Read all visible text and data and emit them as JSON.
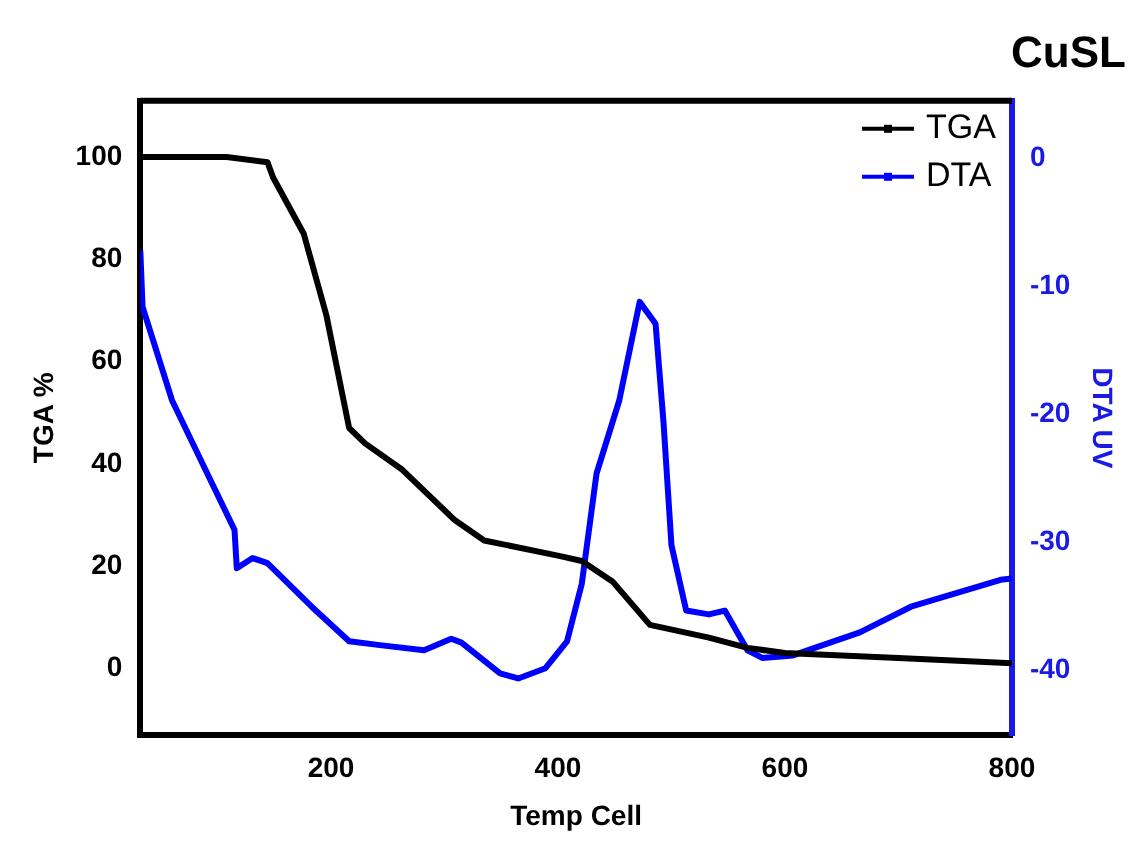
{
  "chart_data": {
    "type": "line",
    "title": "CuSL",
    "xlabel": "Temp Cell",
    "ylabel": "TGA %",
    "y2label": "DTA UV",
    "xlim": [
      32,
      800
    ],
    "xticks": [
      200,
      400,
      600,
      800
    ],
    "ylim": [
      -13,
      111
    ],
    "yticks": [
      0,
      20,
      40,
      60,
      80,
      100
    ],
    "y2lim": [
      -45,
      4.5
    ],
    "y2ticks": [
      -40,
      -30,
      -20,
      -10,
      0
    ],
    "legend": "top right",
    "marker": "none",
    "grid": false,
    "series": [
      {
        "name": "TGA",
        "color": "#000000",
        "x": [
          32,
          108,
          144,
          149,
          176,
          196,
          216,
          230,
          262,
          309,
          335,
          401,
          421,
          448,
          481,
          533,
          567,
          600,
          700,
          800
        ],
        "values": [
          100,
          100,
          99,
          96,
          85,
          69,
          47,
          44,
          39,
          29,
          25,
          22,
          21,
          17,
          8.5,
          6,
          4,
          3,
          2,
          1
        ]
      },
      {
        "name": "DTA",
        "color": "#0000ff",
        "axis": "y2",
        "x": [
          32,
          34,
          60,
          91,
          115,
          117,
          131,
          144,
          183,
          216,
          243,
          282,
          306,
          315,
          349,
          365,
          389,
          408,
          421,
          434,
          454,
          472,
          486,
          493,
          500,
          513,
          533,
          547,
          567,
          580,
          607,
          666,
          711,
          790,
          800
        ],
        "values": [
          -7.2,
          -11.6,
          -18.9,
          -24.6,
          -29,
          -32,
          -31.2,
          -31.6,
          -35,
          -37.7,
          -38,
          -38.4,
          -37.5,
          -37.8,
          -40.2,
          -40.6,
          -39.8,
          -37.7,
          -33.2,
          -24.6,
          -18.9,
          -11.2,
          -12.9,
          -20.6,
          -30.2,
          -35.3,
          -35.6,
          -35.3,
          -38.4,
          -39,
          -38.8,
          -37,
          -35,
          -32.9,
          -32.8
        ]
      }
    ]
  }
}
